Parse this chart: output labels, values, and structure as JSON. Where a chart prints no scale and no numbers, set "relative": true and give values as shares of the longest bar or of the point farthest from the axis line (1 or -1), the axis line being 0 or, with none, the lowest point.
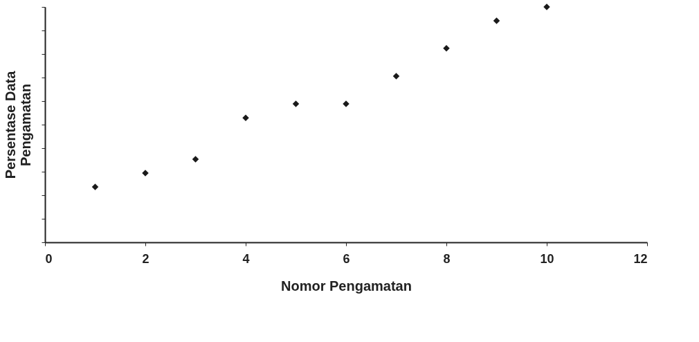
{
  "chart_data": {
    "type": "scatter",
    "xlabel": "Nomor Pengamatan",
    "ylabel": "Persentase Data\nPengamatan",
    "x": [
      1,
      2,
      3,
      4,
      5,
      6,
      7,
      8,
      9,
      10
    ],
    "values": [
      0.235,
      0.294,
      0.353,
      0.529,
      0.588,
      0.588,
      0.706,
      0.824,
      0.941,
      1
    ],
    "color": "#1a1a1a",
    "marker": "diamond",
    "relative": true,
    "xlim": [
      0,
      12
    ],
    "xticks": [
      0,
      2,
      4,
      6,
      8,
      10,
      12
    ],
    "tick_labels": "x",
    "grid": false
  }
}
